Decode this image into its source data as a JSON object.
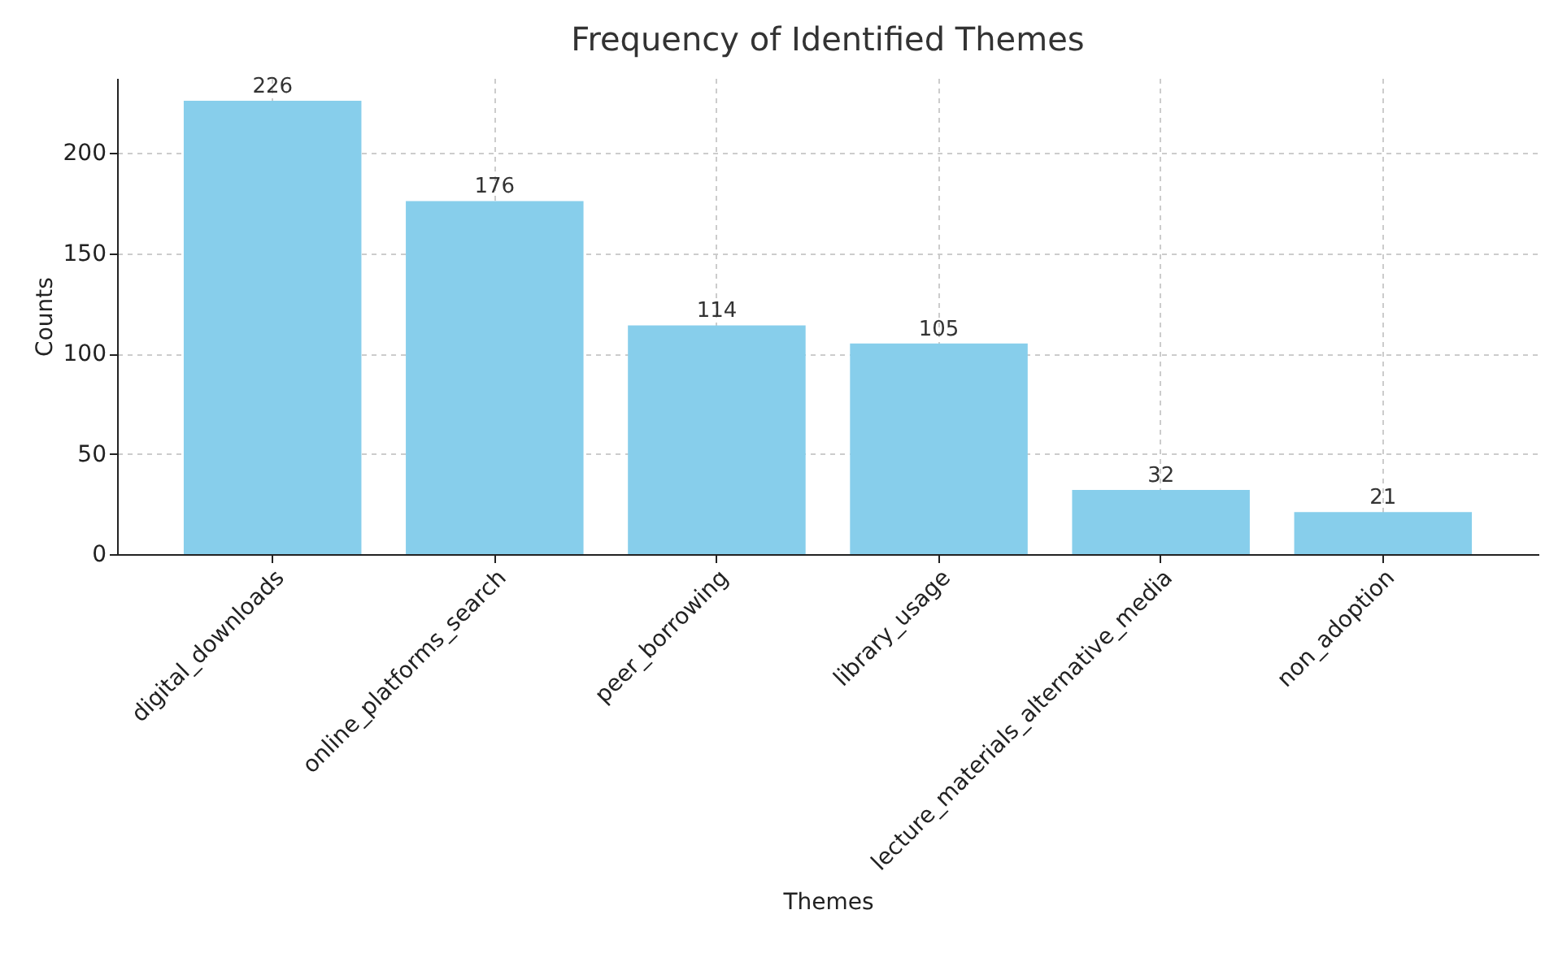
{
  "chart_data": {
    "type": "bar",
    "title": "Frequency of Identified Themes",
    "xlabel": "Themes",
    "ylabel": "Counts",
    "categories": [
      "digital_downloads",
      "online_platforms_search",
      "peer_borrowing",
      "library_usage",
      "lecture_materials_alternative_media",
      "non_adoption"
    ],
    "values": [
      226,
      176,
      114,
      105,
      32,
      21
    ],
    "color": "#87ceeb",
    "ylim": [
      0,
      237.3
    ],
    "yticks": [
      0,
      50,
      100,
      150,
      200
    ],
    "grid": true,
    "data_labels": true
  }
}
